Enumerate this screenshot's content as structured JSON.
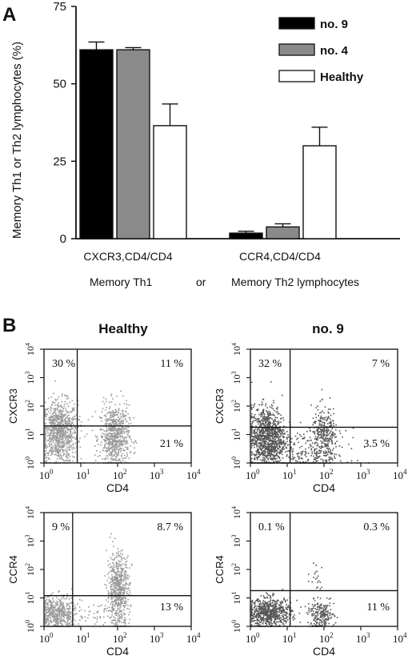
{
  "panel_a": {
    "letter": "A"
  },
  "panel_b": {
    "letter": "B"
  },
  "chart_data": [
    {
      "type": "bar",
      "ylabel": "Memory Th1 or Th2 lymphocytes (%)",
      "ylim": [
        0,
        75
      ],
      "yticks": [
        "0",
        "25",
        "50",
        "75"
      ],
      "categories": [
        "CXCR3,CD4/CD4",
        "CCR4,CD4/CD4"
      ],
      "series": [
        {
          "name": "no. 9",
          "color": "#000000",
          "values": [
            61,
            1.8
          ],
          "errors": [
            2.5,
            0.6
          ]
        },
        {
          "name": "no. 4",
          "color": "#8a8a8a",
          "values": [
            61,
            3.8
          ],
          "errors": [
            0.7,
            1.0
          ]
        },
        {
          "name": "Healthy",
          "color": "#ffffff",
          "values": [
            36.5,
            30
          ],
          "errors": [
            7,
            6
          ]
        }
      ],
      "legend_position": "top-right",
      "bottom_labels": [
        "Memory Th1",
        "or",
        "Memory Th2 lymphocytes"
      ]
    },
    {
      "type": "scatter",
      "title": "Healthy",
      "xlabel": "CD4",
      "ylabel": "CXCR3",
      "quadrants": {
        "upper_left": "30 %",
        "upper_right": "11 %",
        "lower_right": "21 %"
      },
      "gates": {
        "x": 8,
        "y": 20
      }
    },
    {
      "type": "scatter",
      "title": "no. 9",
      "xlabel": "CD4",
      "ylabel": "CXCR3",
      "quadrants": {
        "upper_left": "32 %",
        "upper_right": "7 %",
        "lower_right": "3.5 %"
      },
      "gates": {
        "x": 12,
        "y": 18
      }
    },
    {
      "type": "scatter",
      "xlabel": "CD4",
      "ylabel": "CCR4",
      "quadrants": {
        "upper_left": "9 %",
        "upper_right": "8.7 %",
        "lower_right": "13 %"
      },
      "gates": {
        "x": 6,
        "y": 12
      }
    },
    {
      "type": "scatter",
      "xlabel": "CD4",
      "ylabel": "CCR4",
      "quadrants": {
        "upper_left": "0.1 %",
        "upper_right": "0.3 %",
        "lower_right": "11 %"
      },
      "gates": {
        "x": 12,
        "y": 18
      }
    }
  ],
  "colors": {
    "healthy_dots": "#9a9a9a",
    "patient_dots": "#555555",
    "text": "#111111"
  }
}
